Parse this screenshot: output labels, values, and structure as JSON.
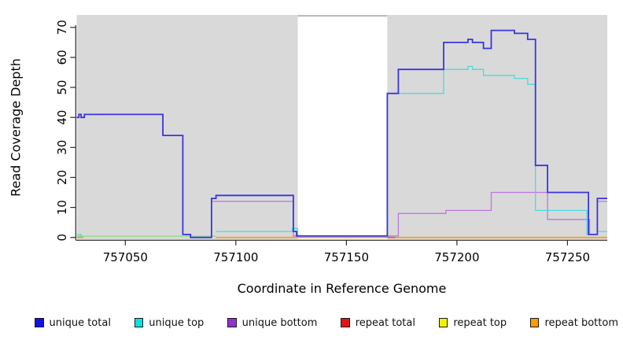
{
  "chart_data": {
    "type": "line",
    "subtype": "step-coverage",
    "xlabel": "Coordinate in Reference Genome",
    "ylabel": "Read Coverage Depth",
    "xlim": [
      757028,
      757268
    ],
    "ylim": [
      0,
      74
    ],
    "x_ticks": [
      757050,
      757100,
      757150,
      757200,
      757250
    ],
    "y_ticks": [
      0,
      10,
      20,
      30,
      40,
      50,
      60,
      70
    ],
    "grid": false,
    "plot_bg": "#d9d9d9",
    "axis_color": "#2b2b2b",
    "mask_region": {
      "from": 757128,
      "to": 757168.5,
      "color": "#ffffff",
      "border": "#999999"
    },
    "legend_position": "bottom",
    "legend_order": [
      "unique-total",
      "unique-top",
      "unique-bottom",
      "repeat-total",
      "repeat-top",
      "repeat-bottom"
    ],
    "series": [
      {
        "id": "repeat-top",
        "label": "repeat top",
        "legend_color": "#f2f200",
        "line_color": "#93d985",
        "width": 1.3,
        "runs": [
          [
            [
              757028,
              0.4
            ],
            [
              757091,
              0.4
            ]
          ]
        ]
      },
      {
        "id": "repeat-bottom",
        "label": "repeat bottom",
        "legend_color": "#ff9b05",
        "line_color": "#ff9b05",
        "width": 1.6,
        "runs": [
          [
            [
              757028,
              0
            ],
            [
              757031,
              0
            ]
          ],
          [
            [
              757091,
              0
            ],
            [
              757268,
              0
            ]
          ]
        ]
      },
      {
        "id": "repeat-total",
        "label": "repeat total",
        "legend_color": "#e51212",
        "line_color": "#e84040",
        "width": 1.3,
        "runs": [
          [
            [
              757168.5,
              0
            ],
            [
              757172,
              0
            ]
          ]
        ]
      },
      {
        "id": "unique-bottom",
        "label": "unique bottom",
        "legend_color": "#9231c9",
        "line_color": "#bc77dd",
        "width": 1.3,
        "runs": [
          [
            [
              757028,
              40
            ],
            [
              757029,
              41
            ],
            [
              757030,
              40
            ],
            [
              757031.5,
              41
            ],
            [
              757067,
              34
            ],
            [
              757076,
              1
            ],
            [
              757079.5,
              0
            ],
            [
              757089,
              12
            ],
            [
              757126,
              0.5
            ],
            [
              757173.5,
              8
            ],
            [
              757195,
              9
            ],
            [
              757215.5,
              15
            ],
            [
              757241,
              6
            ],
            [
              757260,
              1
            ],
            [
              757263.5,
              12
            ],
            [
              757268,
              12
            ]
          ]
        ]
      },
      {
        "id": "unique-top",
        "label": "unique top",
        "legend_color": "#00e3e3",
        "line_color": "#49dcdc",
        "width": 1.3,
        "runs": [
          [
            [
              757028,
              1
            ],
            [
              757030,
              0
            ]
          ],
          [
            [
              757091,
              2
            ],
            [
              757125.5,
              3
            ],
            [
              757128,
              0
            ]
          ],
          [
            [
              757168.5,
              0
            ],
            [
              757168.5,
              48
            ],
            [
              757194,
              56
            ],
            [
              757205,
              57
            ],
            [
              757207,
              56
            ],
            [
              757212,
              54
            ],
            [
              757226,
              53
            ],
            [
              757232,
              51
            ],
            [
              757235.5,
              9
            ],
            [
              757258.8,
              1
            ],
            [
              757263.5,
              2
            ],
            [
              757268,
              2
            ]
          ]
        ]
      },
      {
        "id": "unique-total",
        "label": "unique total",
        "legend_color": "#1111e8",
        "line_color": "#3a34e0",
        "width": 1.8,
        "runs": [
          [
            [
              757028,
              40
            ],
            [
              757029,
              41
            ],
            [
              757030,
              40
            ],
            [
              757031.5,
              41
            ],
            [
              757067,
              34
            ],
            [
              757076,
              1
            ],
            [
              757079.5,
              0
            ],
            [
              757089,
              13
            ],
            [
              757091,
              14
            ],
            [
              757126,
              2
            ],
            [
              757127.5,
              0.5
            ],
            [
              757168.5,
              48
            ],
            [
              757173.5,
              56
            ],
            [
              757194,
              65
            ],
            [
              757205,
              66
            ],
            [
              757207,
              65
            ],
            [
              757212,
              63
            ],
            [
              757215.5,
              69
            ],
            [
              757226,
              68
            ],
            [
              757232,
              66
            ],
            [
              757235.5,
              24
            ],
            [
              757241,
              15
            ],
            [
              757259.5,
              1
            ],
            [
              757263.5,
              13
            ],
            [
              757268,
              13
            ]
          ]
        ]
      }
    ]
  }
}
